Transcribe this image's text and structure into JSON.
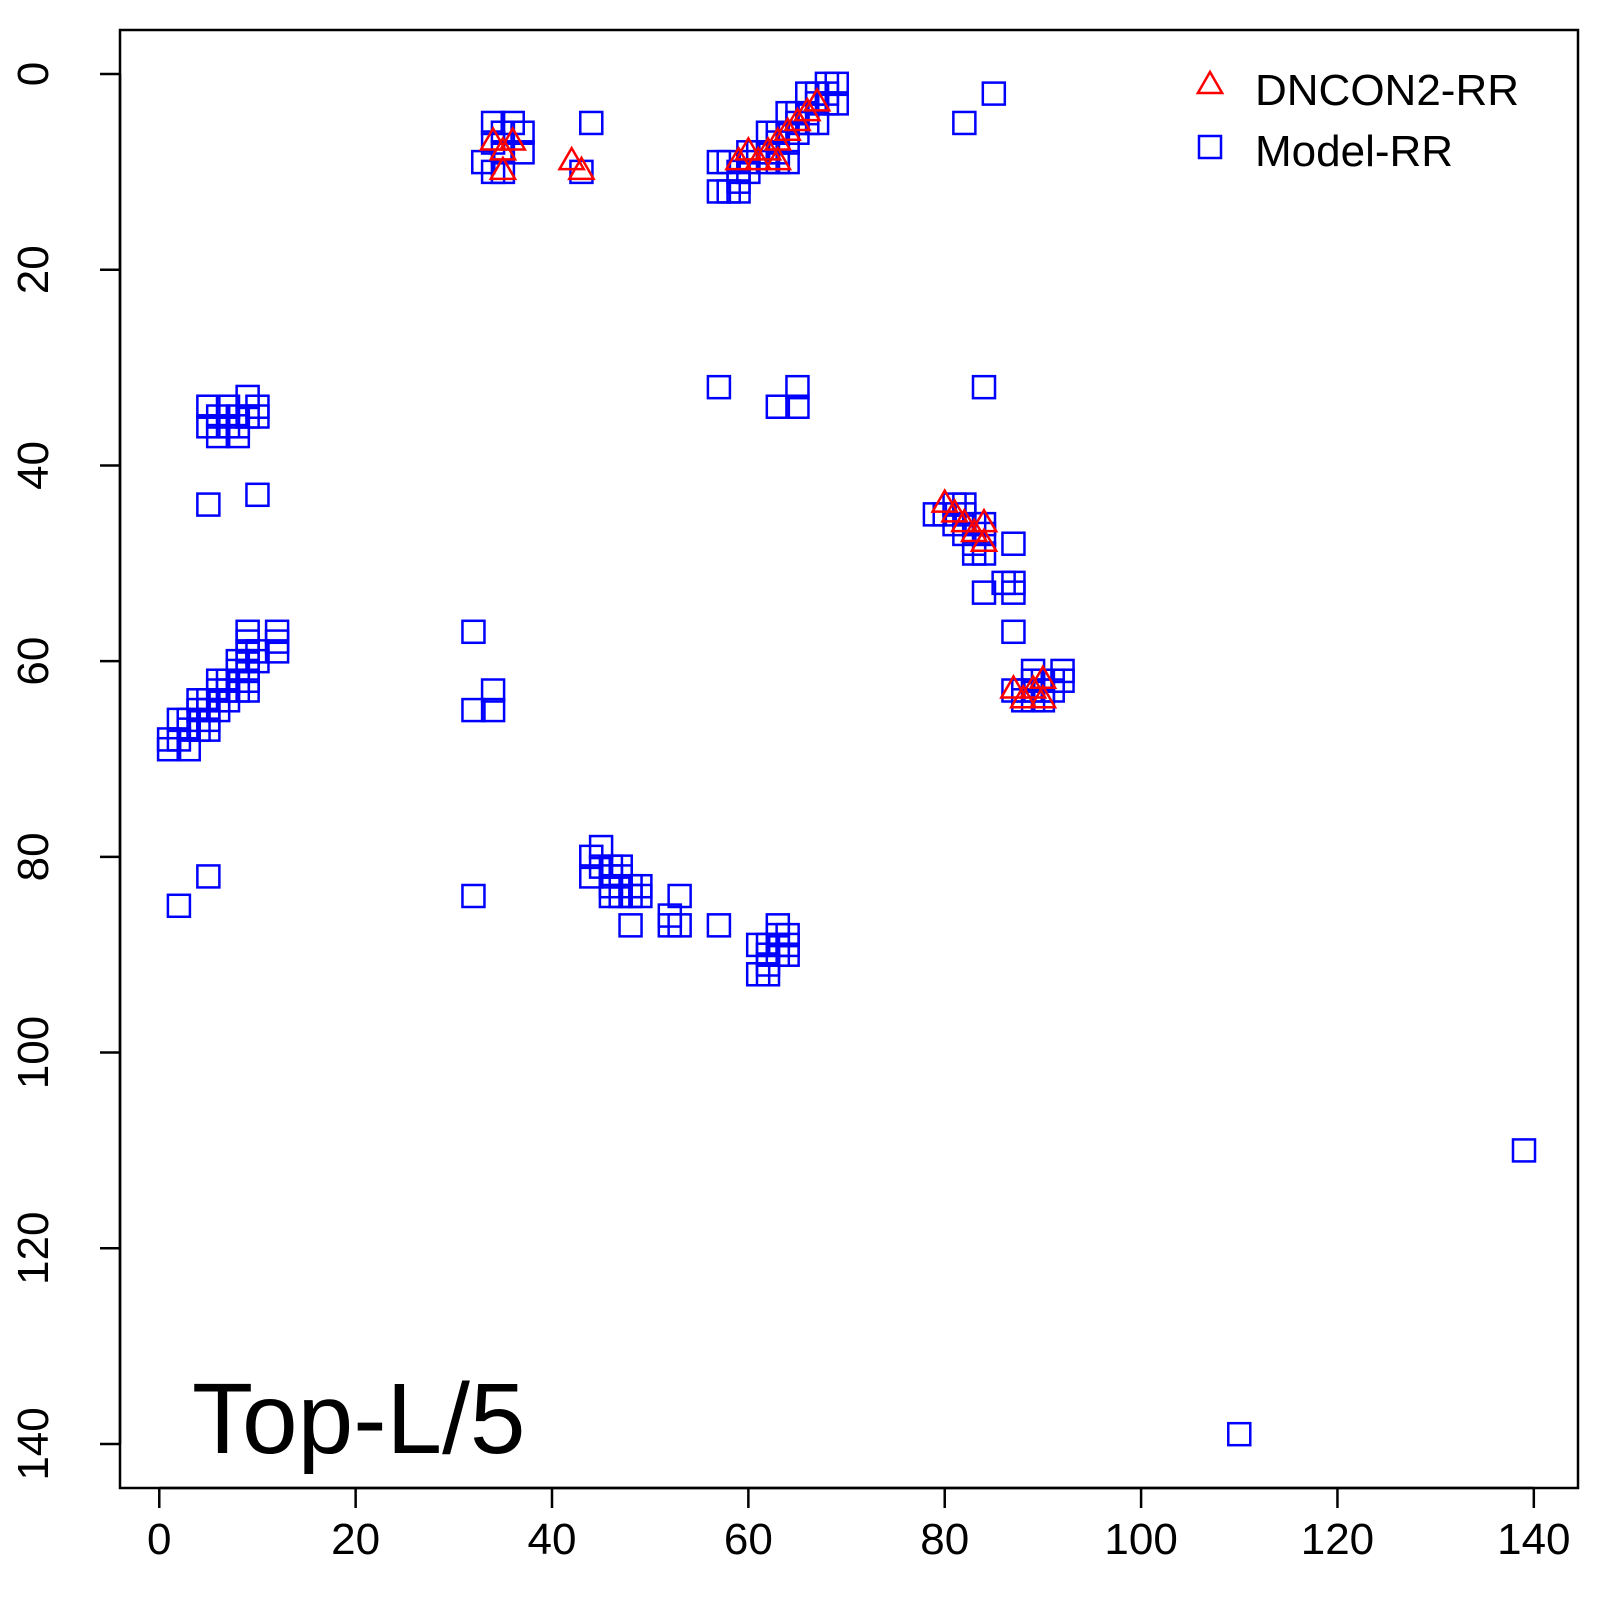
{
  "chart_data": {
    "type": "scatter",
    "title": "",
    "xlabel": "",
    "ylabel": "",
    "xlim": [
      -4,
      144.5
    ],
    "ylim": [
      -4.5,
      144.5
    ],
    "y_inverted": true,
    "x_ticks": [
      "0",
      "20",
      "40",
      "60",
      "80",
      "100",
      "120",
      "140"
    ],
    "y_ticks": [
      "0",
      "20",
      "40",
      "60",
      "80",
      "100",
      "120",
      "140"
    ],
    "grid": false,
    "legend_position": "top-right",
    "annotation": "Top-L/5",
    "colors": {
      "DNCON2-RR": "#ff0000",
      "Model-RR": "#0000ff"
    },
    "series": [
      {
        "name": "DNCON2-RR",
        "marker": "triangle",
        "points": [
          [
            34,
            7
          ],
          [
            35,
            8
          ],
          [
            35,
            10
          ],
          [
            36,
            7
          ],
          [
            42,
            9
          ],
          [
            43,
            10
          ],
          [
            59,
            9
          ],
          [
            60,
            8
          ],
          [
            61,
            9
          ],
          [
            62,
            8
          ],
          [
            63,
            9
          ],
          [
            63,
            7
          ],
          [
            64,
            6
          ],
          [
            65,
            5
          ],
          [
            66,
            4
          ],
          [
            67,
            3
          ],
          [
            80,
            44
          ],
          [
            81,
            45
          ],
          [
            82,
            46
          ],
          [
            83,
            47
          ],
          [
            84,
            46
          ],
          [
            84,
            48
          ],
          [
            87,
            63
          ],
          [
            88,
            64
          ],
          [
            89,
            63
          ],
          [
            90,
            62
          ],
          [
            90,
            64
          ]
        ]
      },
      {
        "name": "Model-RR",
        "marker": "square",
        "points": [
          [
            34,
            5
          ],
          [
            36,
            5
          ],
          [
            35,
            6
          ],
          [
            37,
            6
          ],
          [
            34,
            7
          ],
          [
            35,
            8
          ],
          [
            37,
            8
          ],
          [
            33,
            9
          ],
          [
            34,
            10
          ],
          [
            35,
            10
          ],
          [
            44,
            5
          ],
          [
            43,
            10
          ],
          [
            57,
            9
          ],
          [
            58,
            9
          ],
          [
            60,
            9
          ],
          [
            59,
            10
          ],
          [
            60,
            10
          ],
          [
            57,
            12
          ],
          [
            58,
            12
          ],
          [
            59,
            12
          ],
          [
            59,
            11
          ],
          [
            60,
            8
          ],
          [
            61,
            8
          ],
          [
            62,
            8
          ],
          [
            63,
            8
          ],
          [
            62,
            9
          ],
          [
            63,
            9
          ],
          [
            64,
            9
          ],
          [
            62,
            6
          ],
          [
            63,
            6
          ],
          [
            64,
            6
          ],
          [
            65,
            6
          ],
          [
            63,
            7
          ],
          [
            64,
            7
          ],
          [
            64,
            4
          ],
          [
            65,
            4
          ],
          [
            66,
            4
          ],
          [
            65,
            5
          ],
          [
            66,
            5
          ],
          [
            67,
            5
          ],
          [
            66,
            2
          ],
          [
            67,
            3
          ],
          [
            68,
            3
          ],
          [
            69,
            3
          ],
          [
            67,
            2
          ],
          [
            68,
            2
          ],
          [
            68,
            1
          ],
          [
            69,
            1
          ],
          [
            82,
            5
          ],
          [
            85,
            2
          ],
          [
            5,
            34
          ],
          [
            7,
            34
          ],
          [
            9,
            33
          ],
          [
            10,
            34
          ],
          [
            5,
            36
          ],
          [
            6,
            35
          ],
          [
            6,
            36
          ],
          [
            6,
            37
          ],
          [
            7,
            36
          ],
          [
            8,
            36
          ],
          [
            8,
            37
          ],
          [
            8,
            35
          ],
          [
            9,
            35
          ],
          [
            10,
            35
          ],
          [
            5,
            44
          ],
          [
            10,
            43
          ],
          [
            1,
            68
          ],
          [
            1,
            69
          ],
          [
            2,
            68
          ],
          [
            3,
            69
          ],
          [
            2,
            66
          ],
          [
            3,
            66
          ],
          [
            3,
            67
          ],
          [
            4,
            67
          ],
          [
            4,
            65
          ],
          [
            4,
            64
          ],
          [
            5,
            64
          ],
          [
            5,
            65
          ],
          [
            5,
            66
          ],
          [
            5,
            67
          ],
          [
            6,
            62
          ],
          [
            6,
            63
          ],
          [
            6,
            64
          ],
          [
            6,
            65
          ],
          [
            7,
            62
          ],
          [
            7,
            63
          ],
          [
            7,
            64
          ],
          [
            8,
            60
          ],
          [
            8,
            61
          ],
          [
            8,
            62
          ],
          [
            8,
            63
          ],
          [
            9,
            58
          ],
          [
            9,
            59
          ],
          [
            9,
            60
          ],
          [
            9,
            61
          ],
          [
            9,
            62
          ],
          [
            9,
            63
          ],
          [
            9,
            57
          ],
          [
            10,
            59
          ],
          [
            10,
            60
          ],
          [
            12,
            57
          ],
          [
            12,
            58
          ],
          [
            12,
            59
          ],
          [
            32,
            57
          ],
          [
            32,
            65
          ],
          [
            34,
            63
          ],
          [
            34,
            65
          ],
          [
            57,
            32
          ],
          [
            63,
            34
          ],
          [
            65,
            32
          ],
          [
            65,
            34
          ],
          [
            84,
            32
          ],
          [
            79,
            45
          ],
          [
            80,
            45
          ],
          [
            81,
            44
          ],
          [
            81,
            46
          ],
          [
            82,
            44
          ],
          [
            82,
            45
          ],
          [
            82,
            47
          ],
          [
            83,
            46
          ],
          [
            83,
            48
          ],
          [
            83,
            49
          ],
          [
            84,
            46
          ],
          [
            84,
            47
          ],
          [
            84,
            49
          ],
          [
            84,
            53
          ],
          [
            86,
            52
          ],
          [
            87,
            52
          ],
          [
            87,
            53
          ],
          [
            87,
            48
          ],
          [
            87,
            57
          ],
          [
            87,
            63
          ],
          [
            88,
            63
          ],
          [
            88,
            64
          ],
          [
            89,
            61
          ],
          [
            89,
            62
          ],
          [
            89,
            63
          ],
          [
            89,
            64
          ],
          [
            90,
            62
          ],
          [
            90,
            63
          ],
          [
            90,
            64
          ],
          [
            91,
            62
          ],
          [
            91,
            63
          ],
          [
            92,
            61
          ],
          [
            92,
            62
          ],
          [
            2,
            85
          ],
          [
            5,
            82
          ],
          [
            32,
            84
          ],
          [
            44,
            80
          ],
          [
            44,
            82
          ],
          [
            45,
            79
          ],
          [
            45,
            81
          ],
          [
            46,
            81
          ],
          [
            46,
            82
          ],
          [
            46,
            83
          ],
          [
            46,
            84
          ],
          [
            47,
            81
          ],
          [
            47,
            82
          ],
          [
            47,
            84
          ],
          [
            48,
            83
          ],
          [
            48,
            84
          ],
          [
            49,
            83
          ],
          [
            49,
            84
          ],
          [
            48,
            87
          ],
          [
            52,
            86
          ],
          [
            52,
            87
          ],
          [
            53,
            84
          ],
          [
            53,
            87
          ],
          [
            57,
            87
          ],
          [
            61,
            89
          ],
          [
            61,
            92
          ],
          [
            62,
            89
          ],
          [
            62,
            90
          ],
          [
            62,
            91
          ],
          [
            62,
            92
          ],
          [
            63,
            87
          ],
          [
            63,
            88
          ],
          [
            63,
            89
          ],
          [
            63,
            90
          ],
          [
            64,
            88
          ],
          [
            64,
            89
          ],
          [
            64,
            90
          ],
          [
            110,
            139
          ],
          [
            139,
            110
          ]
        ]
      }
    ]
  }
}
